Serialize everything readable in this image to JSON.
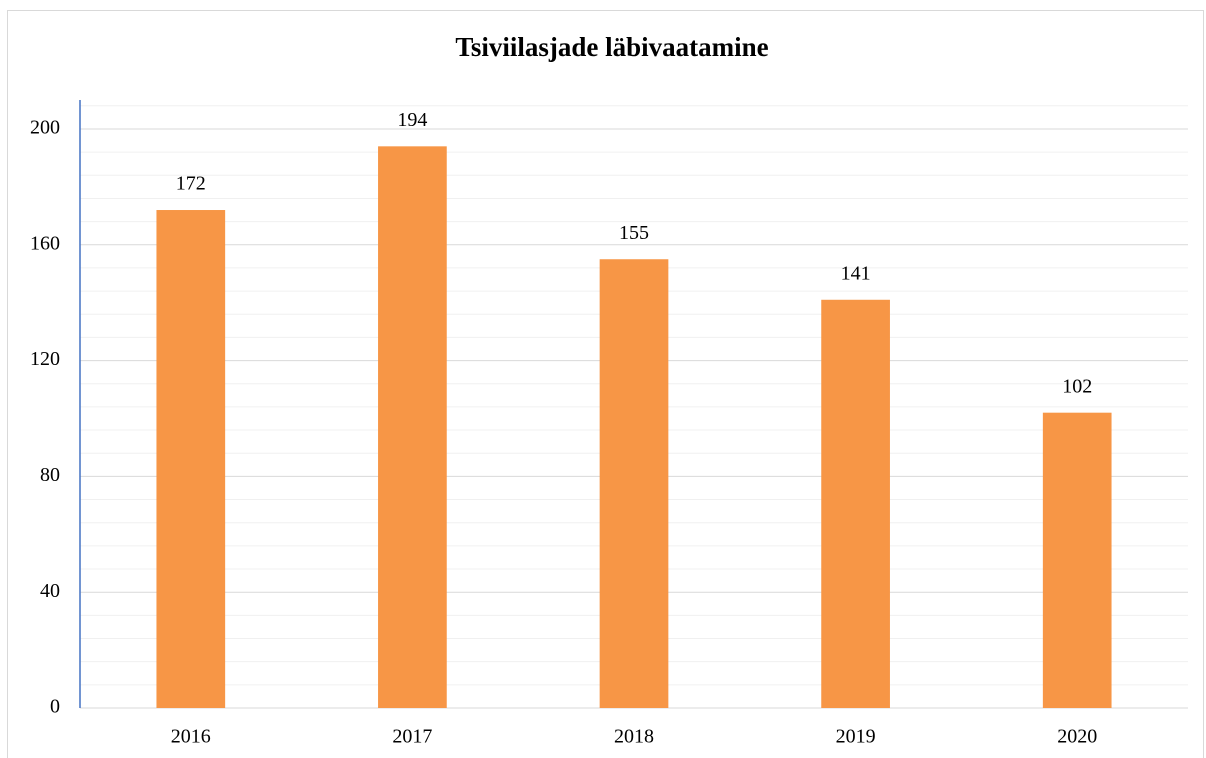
{
  "chart_data": {
    "type": "bar",
    "title": "Tsiviilasjade läbivaatamine",
    "categories": [
      "2016",
      "2017",
      "2018",
      "2019",
      "2020"
    ],
    "values": [
      172,
      194,
      155,
      141,
      102
    ],
    "color": "#f79646",
    "ylim": [
      0,
      210
    ],
    "yticks": [
      0,
      40,
      80,
      120,
      160,
      200
    ],
    "grid": true,
    "minor_grid_divisions": 5
  }
}
